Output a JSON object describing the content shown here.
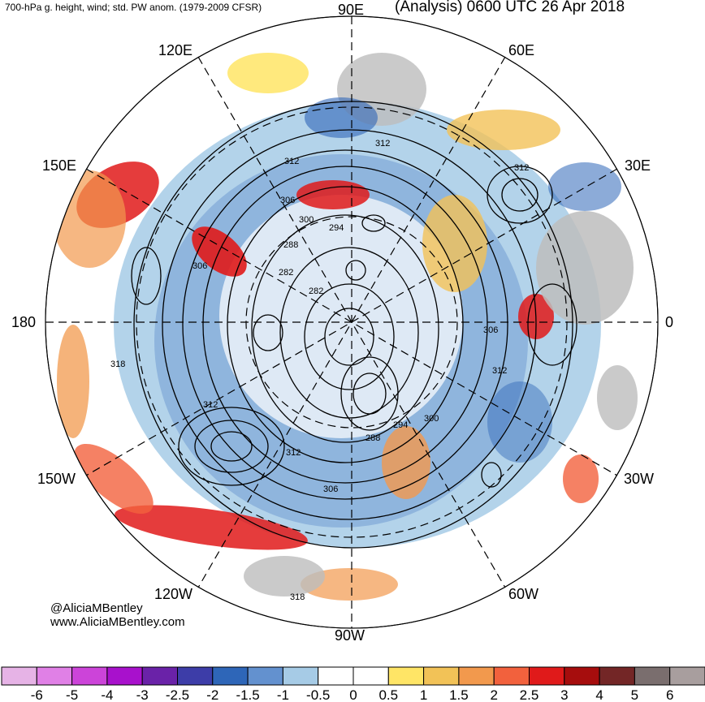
{
  "header": {
    "left_title": "700-hPa g. height, wind; std. PW anom. (1979-2009 CFSR)",
    "right_title": "(Analysis) 0600 UTC 26 Apr 2018"
  },
  "map": {
    "projection": "north-polar-stereographic",
    "longitude_labels": [
      "90E",
      "60E",
      "30E",
      "0",
      "30W",
      "60W",
      "90W",
      "120W",
      "150W",
      "180",
      "150E",
      "120E"
    ],
    "contour_labels": [
      "312",
      "312",
      "312",
      "312",
      "306",
      "300",
      "294",
      "288",
      "282",
      "282",
      "306",
      "318",
      "312",
      "306",
      "312",
      "288",
      "294",
      "300",
      "318",
      "306"
    ]
  },
  "credits": {
    "twitter": "@AliciaMBentley",
    "website": "www.AliciaMBentley.com"
  },
  "colorbar": {
    "colors": [
      "#e6b3e6",
      "#e080e6",
      "#cc44d9",
      "#a811cc",
      "#6a22a8",
      "#3d3da8",
      "#2e66b8",
      "#6391cf",
      "#a6cbe6",
      "#ffffff",
      "#ffffff",
      "#ffe566",
      "#f2c257",
      "#f2994d",
      "#f2613d",
      "#e01a1a",
      "#a60d0d",
      "#732626",
      "#7a6e6e",
      "#a89e9e"
    ],
    "tick_labels": [
      "-6",
      "-5",
      "-4",
      "-3",
      "-2.5",
      "-2",
      "-1.5",
      "-1",
      "-0.5",
      "0",
      "0.5",
      "1",
      "1.5",
      "2",
      "2.5",
      "3",
      "4",
      "5",
      "6"
    ]
  }
}
